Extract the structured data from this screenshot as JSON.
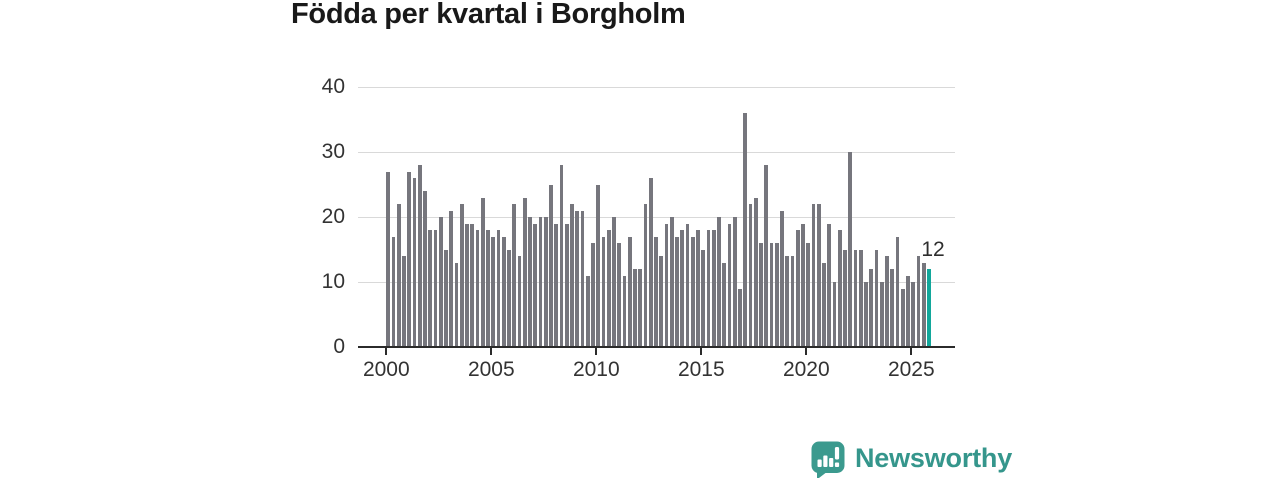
{
  "header": {
    "title": "Födda per kvartal i Borgholm"
  },
  "chart_data": {
    "type": "bar",
    "title": "Födda per kvartal i Borgholm",
    "x_start": "2000-Q1",
    "x_end": "2025-Q4",
    "frequency": "quarterly",
    "x_tick_labels": [
      "2000",
      "2005",
      "2010",
      "2015",
      "2020",
      "2025"
    ],
    "y_ticks": [
      0,
      10,
      20,
      30,
      40
    ],
    "ylim": [
      0,
      40
    ],
    "grid": "horizontal",
    "legend_position": "none",
    "values": [
      27,
      17,
      22,
      14,
      27,
      26,
      28,
      24,
      18,
      18,
      20,
      15,
      21,
      13,
      22,
      19,
      19,
      18,
      23,
      18,
      17,
      18,
      17,
      15,
      22,
      14,
      23,
      20,
      19,
      20,
      20,
      25,
      19,
      28,
      19,
      22,
      21,
      21,
      11,
      16,
      25,
      17,
      18,
      20,
      16,
      11,
      17,
      12,
      12,
      22,
      26,
      17,
      14,
      19,
      20,
      17,
      18,
      19,
      17,
      18,
      15,
      18,
      18,
      20,
      13,
      19,
      20,
      9,
      36,
      22,
      23,
      16,
      28,
      16,
      16,
      21,
      14,
      14,
      18,
      19,
      16,
      22,
      22,
      13,
      19,
      10,
      18,
      15,
      30,
      15,
      15,
      10,
      12,
      15,
      10,
      14,
      12,
      17,
      9,
      11,
      10,
      14,
      13,
      12
    ],
    "highlight_last": {
      "value": 12,
      "label": "12"
    },
    "colors": {
      "bar": "#76767d",
      "highlight": "#12a79b",
      "grid": "#d9d9d9",
      "axis": "#2b2b2b",
      "text": "#333333"
    }
  },
  "footer": {
    "brand": "Newsworthy",
    "logo_color": "#3b9a8e"
  }
}
